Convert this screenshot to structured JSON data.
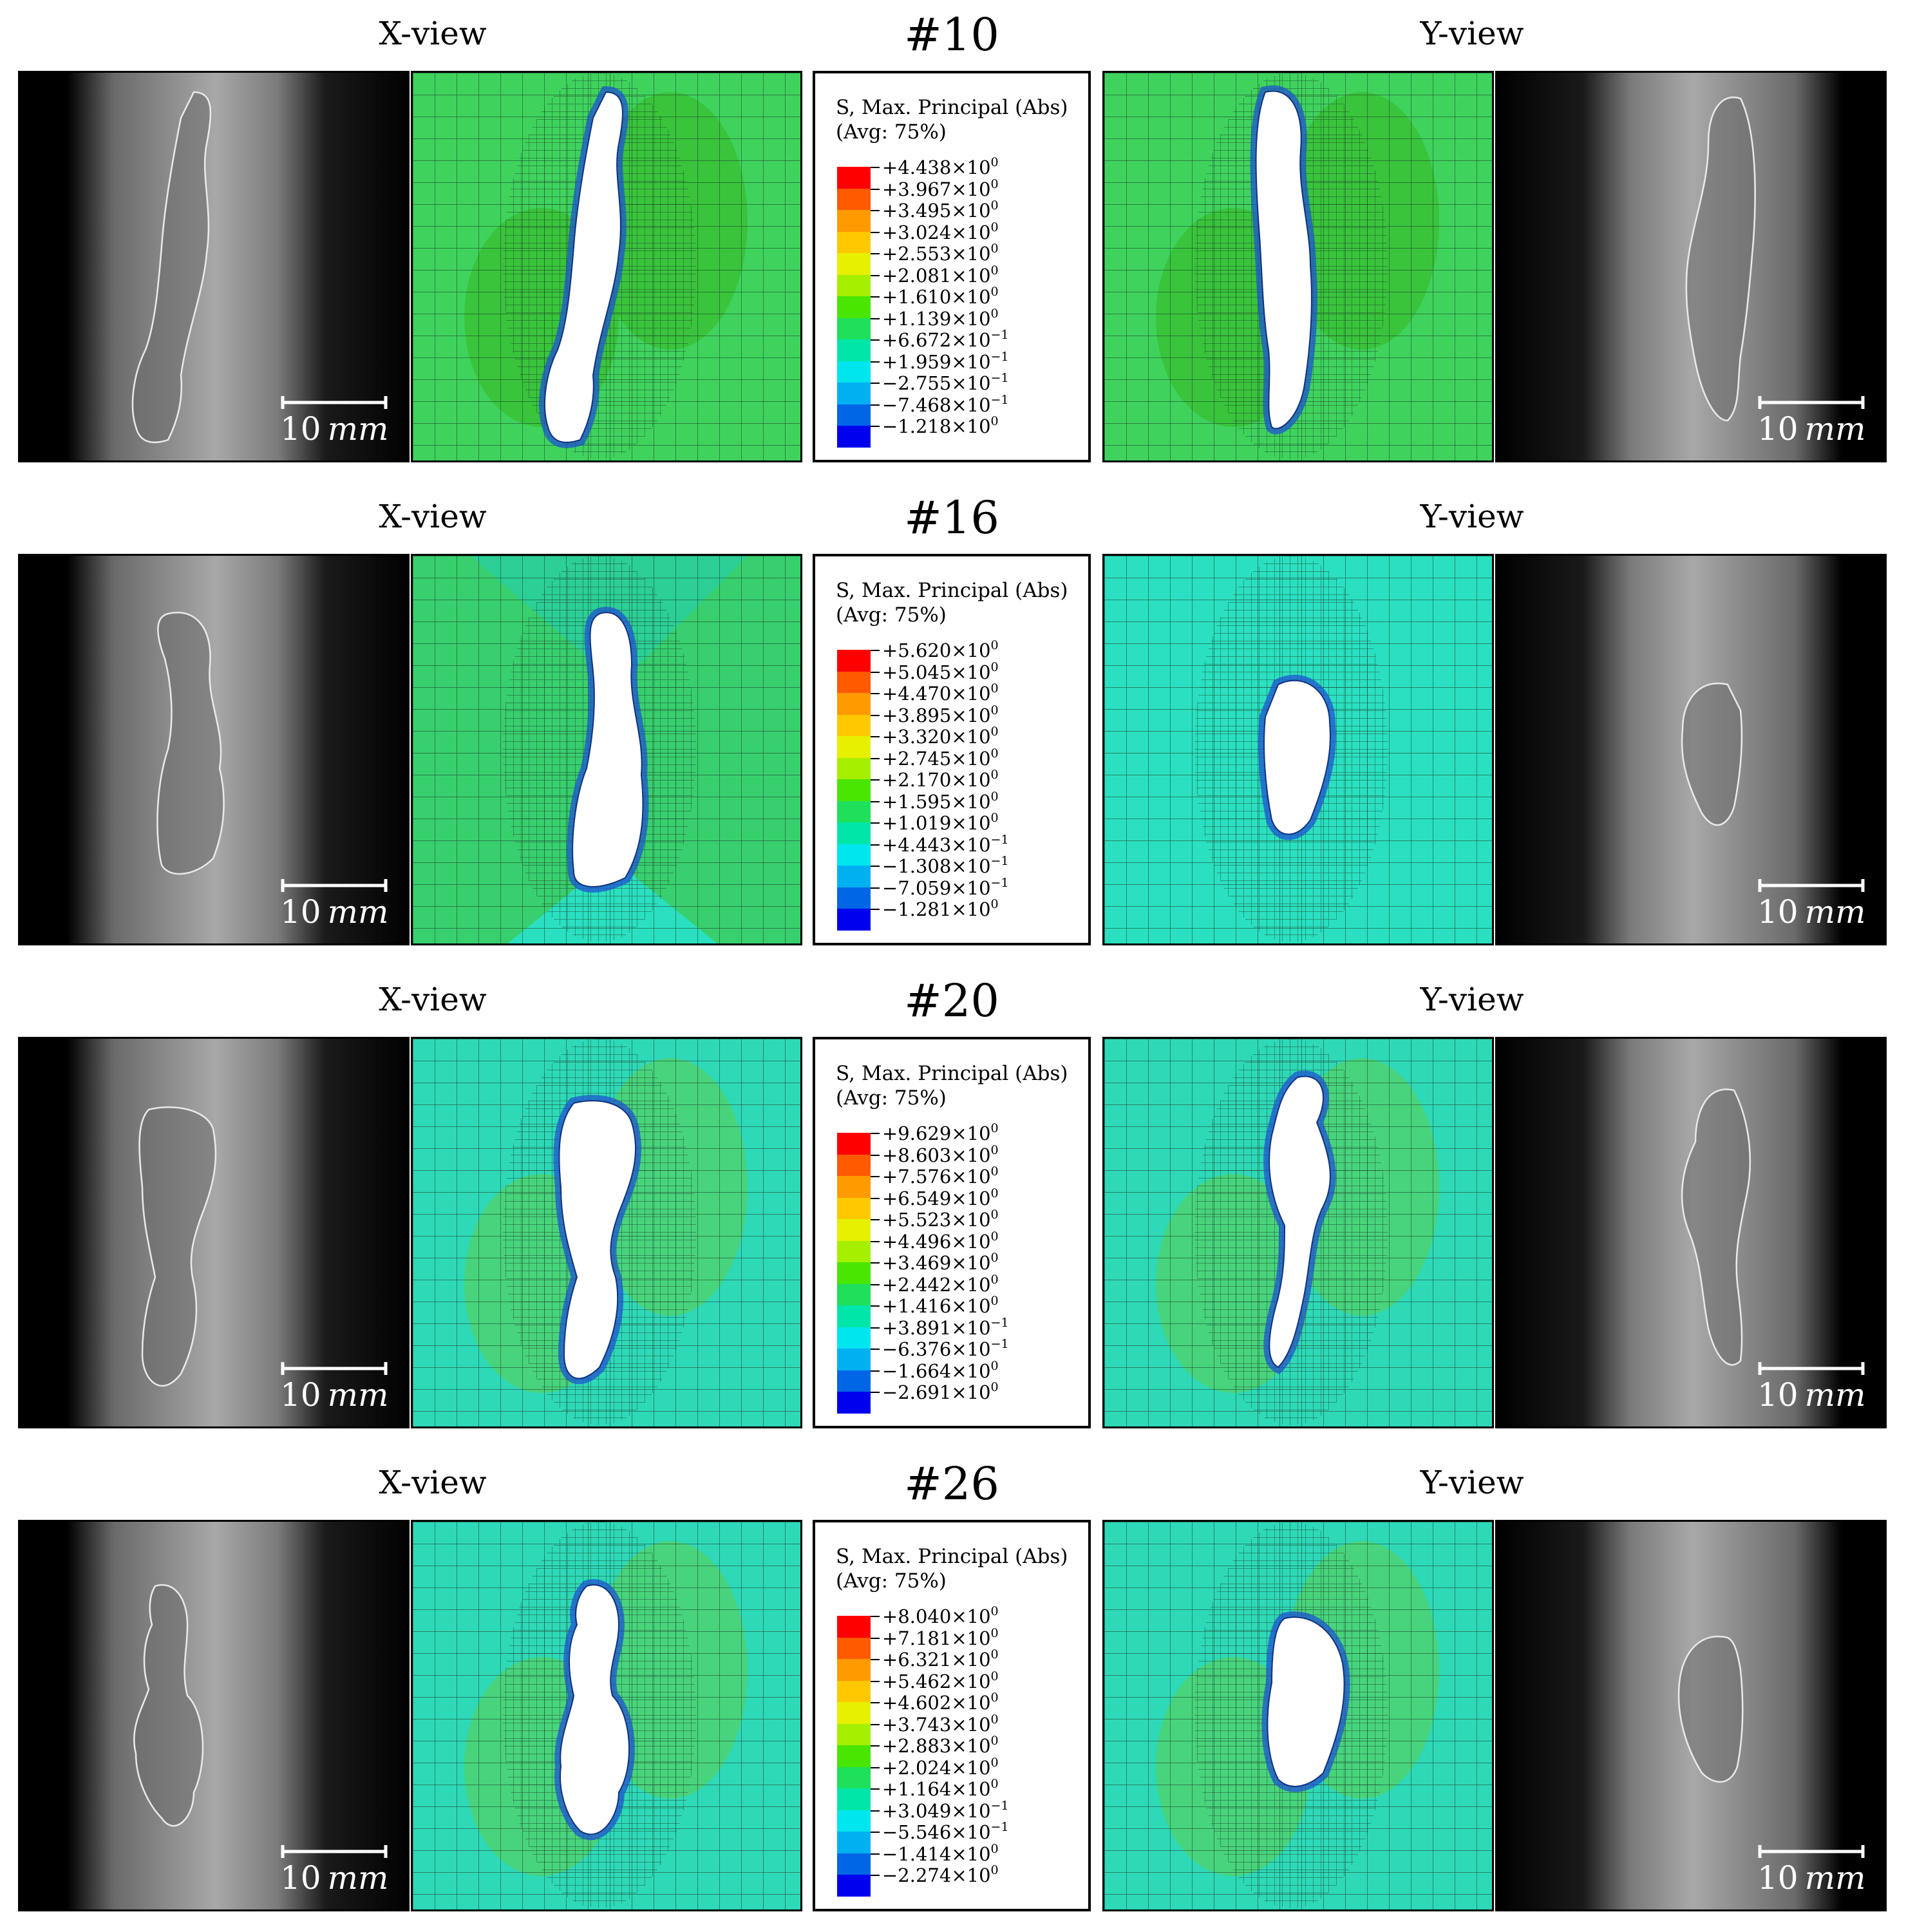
{
  "rows": [
    {
      "id": "10",
      "left_title": "X-view",
      "number": "#10",
      "right_title": "Y-view",
      "scale_value": "10",
      "scale_unit": "mm",
      "legend_title": "S, Max. Principal (Abs)\n(Avg: 75%)",
      "legend_values": [
        "+4.438×10",
        "+3.967×10",
        "+3.495×10",
        "+3.024×10",
        "+2.553×10",
        "+2.081×10",
        "+1.610×10",
        "+1.139×10",
        "+6.672×10",
        "+1.959×10",
        "−2.755×10",
        "−7.468×10",
        "−1.218×10"
      ],
      "legend_exponents": [
        "0",
        "0",
        "0",
        "0",
        "0",
        "0",
        "0",
        "0",
        "−1",
        "−1",
        "−1",
        "−1",
        "0"
      ]
    },
    {
      "id": "16",
      "left_title": "X-view",
      "number": "#16",
      "right_title": "Y-view",
      "scale_value": "10",
      "scale_unit": "mm",
      "legend_title": "S, Max. Principal (Abs)\n(Avg: 75%)",
      "legend_values": [
        "+5.620×10",
        "+5.045×10",
        "+4.470×10",
        "+3.895×10",
        "+3.320×10",
        "+2.745×10",
        "+2.170×10",
        "+1.595×10",
        "+1.019×10",
        "+4.443×10",
        "−1.308×10",
        "−7.059×10",
        "−1.281×10"
      ],
      "legend_exponents": [
        "0",
        "0",
        "0",
        "0",
        "0",
        "0",
        "0",
        "0",
        "0",
        "−1",
        "−1",
        "−1",
        "0"
      ]
    },
    {
      "id": "20",
      "left_title": "X-view",
      "number": "#20",
      "right_title": "Y-view",
      "scale_value": "10",
      "scale_unit": "mm",
      "legend_title": "S, Max. Principal (Abs)\n(Avg: 75%)",
      "legend_values": [
        "+9.629×10",
        "+8.603×10",
        "+7.576×10",
        "+6.549×10",
        "+5.523×10",
        "+4.496×10",
        "+3.469×10",
        "+2.442×10",
        "+1.416×10",
        "+3.891×10",
        "−6.376×10",
        "−1.664×10",
        "−2.691×10"
      ],
      "legend_exponents": [
        "0",
        "0",
        "0",
        "0",
        "0",
        "0",
        "0",
        "0",
        "0",
        "−1",
        "−1",
        "0",
        "0"
      ]
    },
    {
      "id": "26",
      "left_title": "X-view",
      "number": "#26",
      "right_title": "Y-view",
      "scale_value": "10",
      "scale_unit": "mm",
      "legend_title": "S, Max. Principal (Abs)\n(Avg: 75%)",
      "legend_values": [
        "+8.040×10",
        "+7.181×10",
        "+6.321×10",
        "+5.462×10",
        "+4.602×10",
        "+3.743×10",
        "+2.883×10",
        "+2.024×10",
        "+1.164×10",
        "+3.049×10",
        "−5.546×10",
        "−1.414×10",
        "−2.274×10"
      ],
      "legend_exponents": [
        "0",
        "0",
        "0",
        "0",
        "0",
        "0",
        "0",
        "0",
        "0",
        "−1",
        "−1",
        "0",
        "0"
      ]
    }
  ],
  "legend_colors": [
    "#ff0000",
    "#ff5a00",
    "#ff9a00",
    "#ffc800",
    "#e6f000",
    "#a6ef00",
    "#48e600",
    "#1ee05a",
    "#00e6a8",
    "#00e6ee",
    "#00b0f0",
    "#0066e6",
    "#0000ee"
  ],
  "colors": {
    "mesh_green": "#4cd66a",
    "mesh_green_dark": "#36c23a",
    "mesh_cyan": "#2ae0c0",
    "mesh_blue": "#2a6ed8",
    "xray_bg": "#000000"
  }
}
